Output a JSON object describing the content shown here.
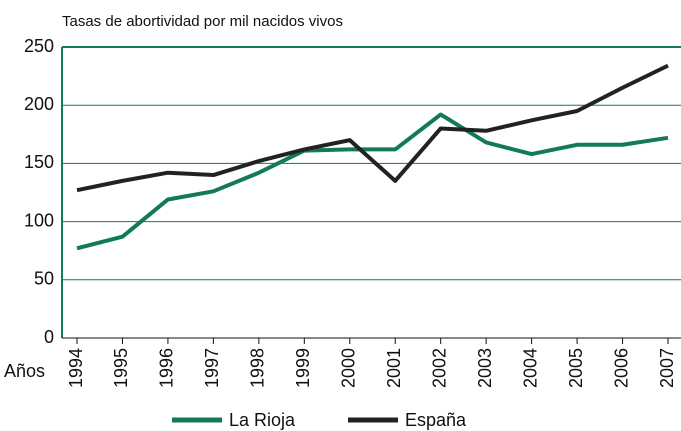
{
  "chart_data": {
    "type": "line",
    "subtitle": "Tasas de abortividad por mil nacidos vivos",
    "x_label": "Años",
    "categories": [
      "1994",
      "1995",
      "1996",
      "1997",
      "1998",
      "1999",
      "2000",
      "2001",
      "2002",
      "2003",
      "2004",
      "2005",
      "2006",
      "2007"
    ],
    "series": [
      {
        "name": "La Rioja",
        "color": "#127a55",
        "values": [
          77,
          87,
          119,
          126,
          142,
          161,
          162,
          162,
          192,
          168,
          158,
          166,
          166,
          172
        ]
      },
      {
        "name": "España",
        "color": "#222222",
        "values": [
          127,
          135,
          142,
          140,
          152,
          162,
          170,
          135,
          180,
          178,
          187,
          195,
          215,
          234
        ]
      }
    ],
    "ylim": [
      0,
      250
    ],
    "yticks": [
      0,
      50,
      100,
      150,
      200,
      250
    ],
    "grid": true,
    "legend": "bottom"
  }
}
